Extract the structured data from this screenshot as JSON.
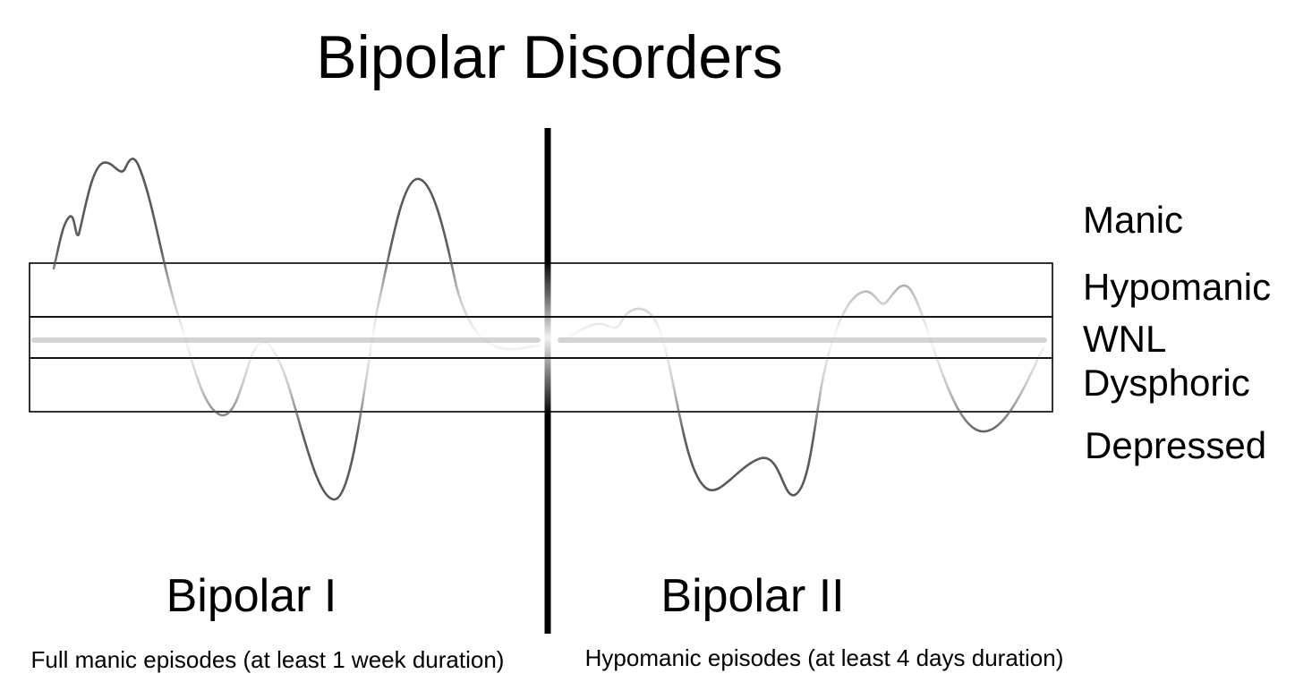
{
  "title": "Bipolar Disorders",
  "levels": [
    {
      "id": "manic",
      "label": "Manic"
    },
    {
      "id": "hypomanic",
      "label": "Hypomanic"
    },
    {
      "id": "wnl",
      "label": "WNL"
    },
    {
      "id": "dysphoric",
      "label": "Dysphoric"
    },
    {
      "id": "depressed",
      "label": "Depressed"
    }
  ],
  "panels": [
    {
      "id": "bipolar-1",
      "title": "Bipolar I",
      "caption": "Full manic episodes (at least 1 week duration)"
    },
    {
      "id": "bipolar-2",
      "title": "Bipolar II",
      "caption": "Hypomanic episodes (at least 4 days duration)"
    }
  ],
  "colors": {
    "curve": "#555555",
    "baseline": "#d4d4d4",
    "divider": "#000000",
    "band_border": "#000000"
  }
}
